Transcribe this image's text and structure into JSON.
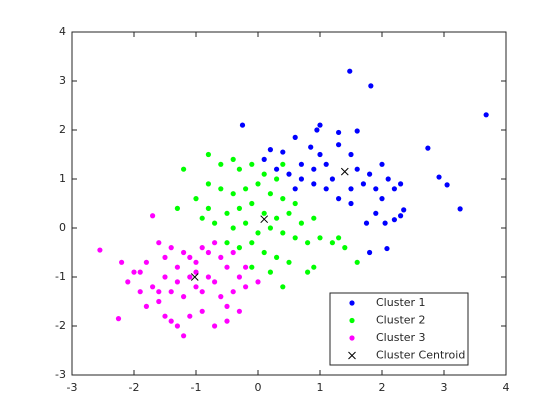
{
  "chart_data": {
    "type": "scatter",
    "xlim": [
      -3,
      4
    ],
    "xticks": [
      -3,
      -2,
      -1,
      0,
      1,
      2,
      3,
      4
    ],
    "ylim": [
      -3,
      4
    ],
    "yticks": [
      -3,
      -2,
      -1,
      0,
      1,
      2,
      3,
      4
    ],
    "legend": "southeast",
    "series": [
      {
        "name": "Cluster 1",
        "color": "#0000ff",
        "marker": "dot",
        "x": [
          1.48,
          1.82,
          3.68,
          2.74,
          2.92,
          3.05,
          3.26,
          2.35,
          2.2,
          2.08,
          1.8,
          1.6,
          1.3,
          1.0,
          0.95,
          0.85,
          0.6,
          0.4,
          0.2,
          0.7,
          0.9,
          1.0,
          1.1,
          1.3,
          1.5,
          1.6,
          1.8,
          2.0,
          2.1,
          2.2,
          2.3,
          1.9,
          1.7,
          1.5,
          1.3,
          1.1,
          0.9,
          0.7,
          0.6,
          0.5,
          0.3,
          0.1,
          -0.25,
          1.2,
          2.0,
          1.9,
          1.75,
          2.3,
          2.05,
          1.5
        ],
        "y": [
          3.2,
          2.9,
          2.31,
          1.63,
          1.04,
          0.88,
          0.39,
          0.37,
          0.17,
          -0.42,
          -0.5,
          1.98,
          1.95,
          2.1,
          2.0,
          1.65,
          1.85,
          1.55,
          1.6,
          1.3,
          1.2,
          1.5,
          1.3,
          1.7,
          1.5,
          1.2,
          1.1,
          1.3,
          1.0,
          0.8,
          0.9,
          0.8,
          0.9,
          0.8,
          0.6,
          0.8,
          0.9,
          1.0,
          0.8,
          1.1,
          1.2,
          1.4,
          2.1,
          1.0,
          0.6,
          0.3,
          0.1,
          0.25,
          0.1,
          0.5
        ]
      },
      {
        "name": "Cluster 2",
        "color": "#00ff00",
        "marker": "dot",
        "x": [
          -1.2,
          -0.8,
          -0.6,
          -0.4,
          -0.3,
          -0.1,
          0.1,
          0.3,
          -0.8,
          -0.6,
          -0.4,
          -0.2,
          0.0,
          0.2,
          0.4,
          0.6,
          -1.0,
          -0.8,
          -0.5,
          -0.3,
          -0.1,
          0.1,
          0.3,
          0.5,
          0.7,
          0.9,
          -0.7,
          -0.4,
          -0.2,
          0.0,
          0.2,
          0.4,
          0.6,
          0.8,
          1.0,
          1.2,
          1.4,
          1.6,
          -0.5,
          -0.3,
          -0.1,
          0.1,
          0.3,
          0.5,
          0.9,
          0.2,
          0.4,
          -0.1,
          -1.3,
          -0.9,
          0.4,
          1.3,
          0.8
        ],
        "y": [
          1.2,
          1.5,
          1.3,
          1.4,
          1.2,
          1.3,
          1.1,
          1.0,
          0.9,
          0.8,
          0.7,
          0.8,
          0.9,
          0.7,
          0.6,
          0.5,
          0.6,
          0.4,
          0.3,
          0.4,
          0.5,
          0.3,
          0.2,
          0.3,
          0.1,
          0.2,
          0.1,
          0.0,
          0.1,
          -0.1,
          0.0,
          -0.1,
          -0.2,
          -0.3,
          -0.2,
          -0.3,
          -0.4,
          -0.7,
          -0.3,
          -0.4,
          -0.3,
          -0.5,
          -0.6,
          -0.7,
          -0.8,
          -0.9,
          -1.2,
          -0.8,
          0.4,
          0.2,
          1.3,
          -0.2,
          -0.9
        ]
      },
      {
        "name": "Cluster 3",
        "color": "#ff00ff",
        "marker": "dot",
        "x": [
          -2.55,
          -2.2,
          -2.25,
          -2.1,
          -1.9,
          -1.8,
          -1.7,
          -1.6,
          -1.5,
          -1.4,
          -1.3,
          -1.2,
          -1.1,
          -1.0,
          -0.9,
          -0.8,
          -0.7,
          -0.6,
          -0.5,
          -0.4,
          -1.7,
          -1.6,
          -1.5,
          -1.4,
          -1.3,
          -1.2,
          -1.1,
          -1.0,
          -0.9,
          -0.8,
          -0.7,
          -0.6,
          -0.5,
          -0.4,
          -0.3,
          -0.2,
          -1.8,
          -1.5,
          -1.3,
          -1.1,
          -0.9,
          -0.7,
          -0.5,
          -1.2,
          -1.4,
          -1.6,
          -0.2,
          0.0,
          -0.3,
          -1.9,
          -1.0,
          -2.0
        ],
        "y": [
          -0.45,
          -0.7,
          -1.85,
          -1.1,
          -0.9,
          -0.7,
          0.25,
          -0.3,
          -0.6,
          -0.4,
          -0.8,
          -0.5,
          -0.6,
          -0.7,
          -0.4,
          -0.5,
          -0.3,
          -0.6,
          -0.8,
          -0.5,
          -1.2,
          -1.5,
          -1.0,
          -1.3,
          -1.1,
          -1.4,
          -1.0,
          -1.2,
          -1.3,
          -1.0,
          -1.1,
          -1.4,
          -1.6,
          -1.3,
          -1.0,
          -1.2,
          -1.6,
          -1.8,
          -2.0,
          -1.8,
          -1.7,
          -2.0,
          -1.9,
          -2.2,
          -1.9,
          -1.3,
          -0.8,
          -1.1,
          -1.7,
          -1.3,
          -0.9,
          -0.9
        ]
      },
      {
        "name": "Cluster Centroid",
        "color": "#000000",
        "marker": "x",
        "x": [
          1.4,
          0.1,
          -1.02
        ],
        "y": [
          1.15,
          0.18,
          -1.0
        ]
      }
    ]
  }
}
